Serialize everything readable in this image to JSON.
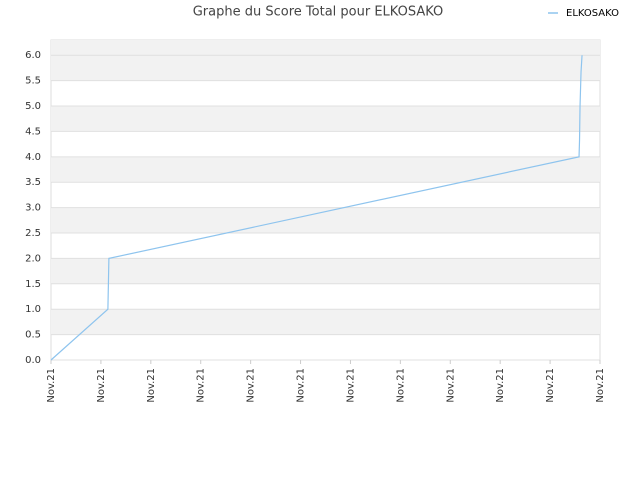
{
  "chart_data": {
    "type": "line",
    "title": "Graphe du Score Total pour ELKOSAKO",
    "x": [
      0,
      1.14,
      1.16,
      10.58,
      10.59,
      10.6,
      10.62,
      10.64
    ],
    "series": [
      {
        "name": "ELKOSAKO",
        "color": "#8ec4ee",
        "values": [
          0,
          1,
          2,
          4,
          4.33,
          5,
          5.67,
          6
        ]
      }
    ],
    "xlim": [
      0,
      11
    ],
    "xticks": [
      {
        "value": 0,
        "label": "Nov.21"
      },
      {
        "value": 1,
        "label": "Nov.21"
      },
      {
        "value": 2,
        "label": "Nov.21"
      },
      {
        "value": 3,
        "label": "Nov.21"
      },
      {
        "value": 4,
        "label": "Nov.21"
      },
      {
        "value": 5,
        "label": "Nov.21"
      },
      {
        "value": 6,
        "label": "Nov.21"
      },
      {
        "value": 7,
        "label": "Nov.21"
      },
      {
        "value": 8,
        "label": "Nov.21"
      },
      {
        "value": 9,
        "label": "Nov.21"
      },
      {
        "value": 10,
        "label": "Nov.21"
      },
      {
        "value": 11,
        "label": "Nov.21"
      }
    ],
    "ylim": [
      0,
      6.3
    ],
    "yticks": [
      {
        "value": 0,
        "label": "0.0"
      },
      {
        "value": 0.5,
        "label": "0.5"
      },
      {
        "value": 1,
        "label": "1.0"
      },
      {
        "value": 1.5,
        "label": "1.5"
      },
      {
        "value": 2,
        "label": "2.0"
      },
      {
        "value": 2.5,
        "label": "2.5"
      },
      {
        "value": 3,
        "label": "3.0"
      },
      {
        "value": 3.5,
        "label": "3.5"
      },
      {
        "value": 4,
        "label": "4.0"
      },
      {
        "value": 4.5,
        "label": "4.5"
      },
      {
        "value": 5,
        "label": "5.0"
      },
      {
        "value": 5.5,
        "label": "5.5"
      },
      {
        "value": 6,
        "label": "6.0"
      }
    ],
    "grid": true,
    "legend": "top-right"
  }
}
